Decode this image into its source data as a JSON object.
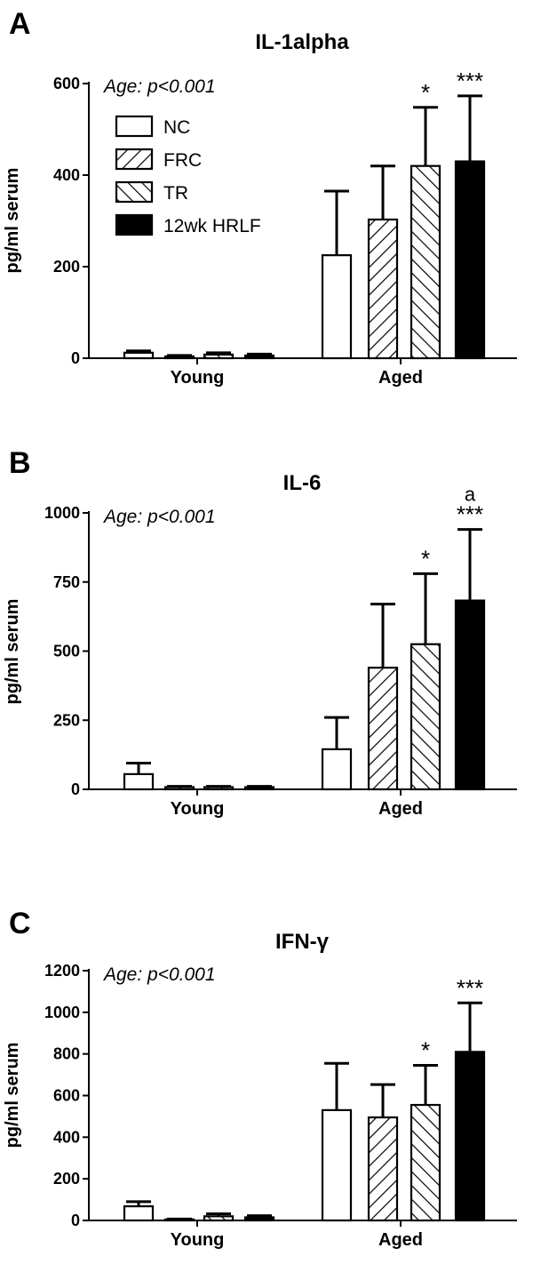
{
  "colors": {
    "black": "#000000",
    "white": "#ffffff"
  },
  "legend": [
    {
      "label": "NC",
      "pattern": "none"
    },
    {
      "label": "FRC",
      "pattern": "back-diagonal"
    },
    {
      "label": "TR",
      "pattern": "forward-diagonal"
    },
    {
      "label": "12wk HRLF",
      "pattern": "solid"
    }
  ],
  "chart_data": [
    {
      "type": "bar",
      "panel": "A",
      "title": "IL-1alpha",
      "ylabel": "pg/ml serum",
      "ylim": [
        0,
        600
      ],
      "yticks": [
        0,
        200,
        400,
        600
      ],
      "categories": [
        "Young",
        "Aged"
      ],
      "annotation": "Age: p<0.001",
      "series": [
        {
          "name": "NC",
          "values": [
            12,
            225
          ],
          "errors": [
            4,
            140
          ],
          "labels": [
            "",
            ""
          ]
        },
        {
          "name": "FRC",
          "values": [
            4,
            303
          ],
          "errors": [
            2,
            117
          ],
          "labels": [
            "",
            ""
          ]
        },
        {
          "name": "TR",
          "values": [
            8,
            420
          ],
          "errors": [
            4,
            128
          ],
          "labels": [
            "",
            "*"
          ]
        },
        {
          "name": "12wk HRLF",
          "values": [
            6,
            430
          ],
          "errors": [
            3,
            143
          ],
          "labels": [
            "",
            "***"
          ]
        }
      ]
    },
    {
      "type": "bar",
      "panel": "B",
      "title": "IL-6",
      "ylabel": "pg/ml serum",
      "ylim": [
        0,
        1000
      ],
      "yticks": [
        0,
        250,
        500,
        750,
        1000
      ],
      "categories": [
        "Young",
        "Aged"
      ],
      "annotation": "Age: p<0.001",
      "series": [
        {
          "name": "NC",
          "values": [
            55,
            145
          ],
          "errors": [
            40,
            115
          ],
          "labels": [
            "",
            ""
          ]
        },
        {
          "name": "FRC",
          "values": [
            8,
            440
          ],
          "errors": [
            3,
            230
          ],
          "labels": [
            "",
            ""
          ]
        },
        {
          "name": "TR",
          "values": [
            8,
            525
          ],
          "errors": [
            3,
            255
          ],
          "labels": [
            "",
            "*"
          ]
        },
        {
          "name": "12wk HRLF",
          "values": [
            8,
            683
          ],
          "errors": [
            3,
            257
          ],
          "labels": [
            "",
            "***"
          ],
          "labels_extra": [
            "",
            "a"
          ]
        }
      ]
    },
    {
      "type": "bar",
      "panel": "C",
      "title": "IFN-γ",
      "ylabel": "pg/ml serum",
      "ylim": [
        0,
        1200
      ],
      "yticks": [
        0,
        200,
        400,
        600,
        800,
        1000,
        1200
      ],
      "categories": [
        "Young",
        "Aged"
      ],
      "annotation": "Age: p<0.001",
      "series": [
        {
          "name": "NC",
          "values": [
            68,
            530
          ],
          "errors": [
            22,
            225
          ],
          "labels": [
            "",
            ""
          ]
        },
        {
          "name": "FRC",
          "values": [
            5,
            495
          ],
          "errors": [
            2,
            158
          ],
          "labels": [
            "",
            ""
          ]
        },
        {
          "name": "TR",
          "values": [
            20,
            555
          ],
          "errors": [
            12,
            190
          ],
          "labels": [
            "",
            "*"
          ]
        },
        {
          "name": "12wk HRLF",
          "values": [
            15,
            810
          ],
          "errors": [
            8,
            235
          ],
          "labels": [
            "",
            "***"
          ]
        }
      ]
    }
  ]
}
